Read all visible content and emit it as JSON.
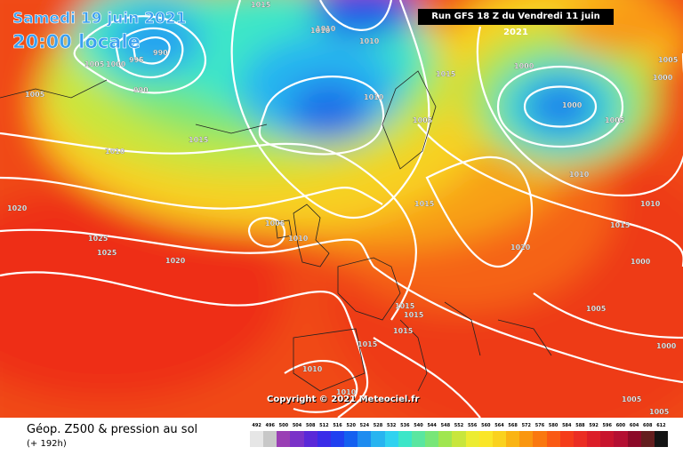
{
  "map": {
    "valid_date": "Samedi 19 juin 2021",
    "valid_time": "20:00 locale",
    "run_info": "Run GFS 18 Z du Vendredi 11 juin 2021",
    "copyright": "Copyright © 2021 Meteociel.fr",
    "parameter": "Géop. Z500 & pression au sol",
    "lead_time": "(+ 192h)",
    "isobar_color": "#ffffff",
    "isobar_labels": [
      "1015",
      "1010",
      "1005",
      "1000",
      "995",
      "990",
      "1020",
      "1025"
    ],
    "pressure_labels": [
      {
        "text": "1015",
        "group": "north"
      },
      {
        "text": "1010",
        "group": "north"
      },
      {
        "text": "990",
        "group": "north-low"
      },
      {
        "text": "995",
        "group": "north-low"
      },
      {
        "text": "1000",
        "group": "north-low"
      },
      {
        "text": "1005",
        "group": "north-low"
      },
      {
        "text": "990",
        "group": "north-low"
      },
      {
        "text": "1010",
        "group": "atlantic"
      },
      {
        "text": "1015",
        "group": "atlantic"
      },
      {
        "text": "1005",
        "group": "atlantic"
      },
      {
        "text": "1020",
        "group": "atlantic"
      },
      {
        "text": "1025",
        "group": "atlantic"
      },
      {
        "text": "1025",
        "group": "atlantic"
      },
      {
        "text": "1020",
        "group": "atlantic"
      },
      {
        "text": "1010",
        "group": "uk"
      },
      {
        "text": "1005",
        "group": "uk"
      },
      {
        "text": "1010",
        "group": "uk"
      },
      {
        "text": "1010",
        "group": "scandinavia"
      },
      {
        "text": "1010",
        "group": "scandinavia"
      },
      {
        "text": "1005",
        "group": "scandinavia"
      },
      {
        "text": "1015",
        "group": "scandinavia"
      },
      {
        "text": "1000",
        "group": "russia"
      },
      {
        "text": "1000",
        "group": "russia"
      },
      {
        "text": "1005",
        "group": "russia"
      },
      {
        "text": "1010",
        "group": "russia"
      },
      {
        "text": "1000",
        "group": "russia"
      },
      {
        "text": "1005",
        "group": "russia"
      },
      {
        "text": "1015",
        "group": "europe"
      },
      {
        "text": "1020",
        "group": "europe"
      },
      {
        "text": "1015",
        "group": "europe"
      },
      {
        "text": "1015",
        "group": "europe"
      },
      {
        "text": "1015",
        "group": "europe"
      },
      {
        "text": "1015",
        "group": "europe"
      },
      {
        "text": "1010",
        "group": "east"
      },
      {
        "text": "1015",
        "group": "east"
      },
      {
        "text": "1000",
        "group": "east"
      },
      {
        "text": "1005",
        "group": "east"
      },
      {
        "text": "1000",
        "group": "east"
      },
      {
        "text": "1005",
        "group": "east"
      },
      {
        "text": "1005",
        "group": "east"
      },
      {
        "text": "1010",
        "group": "iberia"
      },
      {
        "text": "1010",
        "group": "iberia"
      }
    ],
    "scale_values": [
      "492",
      "496",
      "500",
      "504",
      "508",
      "512",
      "516",
      "520",
      "524",
      "528",
      "532",
      "536",
      "540",
      "544",
      "548",
      "552",
      "556",
      "560",
      "564",
      "568",
      "572",
      "576",
      "580",
      "584",
      "588",
      "592",
      "596",
      "600",
      "604",
      "608",
      "612"
    ],
    "scale_colors": [
      "#e6e6e6",
      "#c8c8c8",
      "#9a3fb4",
      "#7a32c8",
      "#5a28d8",
      "#3a2ce8",
      "#2040f0",
      "#1460f0",
      "#1e8cf0",
      "#28b4f0",
      "#30d2f0",
      "#3ce6c8",
      "#5ae6a0",
      "#78e678",
      "#a0e650",
      "#c8e63c",
      "#ecec32",
      "#fae628",
      "#fad21e",
      "#fab414",
      "#fa960f",
      "#fa780f",
      "#fa5a14",
      "#f53c19",
      "#eb2d23",
      "#dc1e28",
      "#c8142d",
      "#b40f32",
      "#8c0a28",
      "#641e1e",
      "#141414"
    ]
  }
}
